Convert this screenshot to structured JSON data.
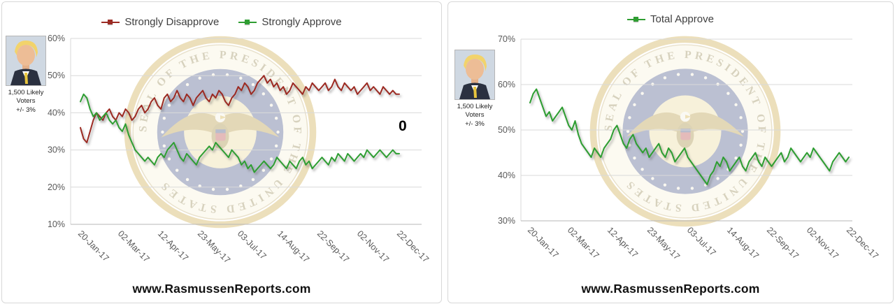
{
  "branding": {
    "website": "www.RasmussenReports.com"
  },
  "photo_note": {
    "line1": "1,500 Likely",
    "line2": "Voters",
    "line3": "+/- 3%"
  },
  "watermark": {
    "ring_text": "SEAL OF THE PRESIDENT OF THE UNITED STATES"
  },
  "chart_data": [
    {
      "type": "line",
      "title": "",
      "legend_position": "top",
      "grid": "horizontal",
      "x_tick_labels": [
        "20-Jan-17",
        "02-Mar-17",
        "12-Apr-17",
        "23-May-17",
        "03-Jul-17",
        "14-Aug-17",
        "22-Sep-17",
        "02-Nov-17",
        "22-Dec-17"
      ],
      "ylim": [
        10,
        60
      ],
      "y_ticks": [
        60,
        50,
        40,
        30,
        20,
        10
      ],
      "y_tick_format": "percent",
      "annotation": "0",
      "series": [
        {
          "name": "Strongly Disapprove",
          "color": "#9C2B24",
          "values": [
            36,
            33,
            32,
            35,
            38,
            40,
            39,
            38,
            40,
            41,
            39,
            38,
            40,
            39,
            41,
            40,
            38,
            39,
            41,
            42,
            40,
            41,
            43,
            44,
            42,
            41,
            44,
            45,
            43,
            44,
            46,
            44,
            43,
            45,
            44,
            42,
            44,
            45,
            46,
            44,
            43,
            45,
            44,
            46,
            45,
            43,
            42,
            44,
            45,
            47,
            46,
            48,
            47,
            45,
            46,
            48,
            49,
            50,
            48,
            49,
            47,
            48,
            46,
            47,
            45,
            46,
            48,
            47,
            46,
            45,
            47,
            46,
            48,
            47,
            46,
            47,
            48,
            46,
            47,
            49,
            47,
            46,
            48,
            47,
            46,
            47,
            45,
            46,
            47,
            48,
            46,
            47,
            46,
            45,
            47,
            46,
            45,
            46,
            45,
            45
          ]
        },
        {
          "name": "Strongly Approve",
          "color": "#2F9E32",
          "values": [
            43,
            45,
            44,
            41,
            39,
            40,
            38,
            39,
            40,
            38,
            37,
            38,
            36,
            35,
            37,
            34,
            32,
            30,
            29,
            28,
            27,
            28,
            27,
            26,
            28,
            29,
            28,
            30,
            31,
            32,
            30,
            28,
            27,
            29,
            28,
            27,
            26,
            28,
            29,
            30,
            31,
            30,
            32,
            31,
            30,
            29,
            28,
            30,
            29,
            28,
            26,
            27,
            25,
            26,
            24,
            25,
            26,
            27,
            26,
            25,
            26,
            28,
            27,
            26,
            25,
            27,
            26,
            25,
            27,
            28,
            26,
            27,
            25,
            26,
            27,
            28,
            27,
            26,
            28,
            27,
            29,
            28,
            27,
            29,
            28,
            27,
            28,
            29,
            28,
            30,
            29,
            28,
            29,
            30,
            29,
            28,
            29,
            30,
            29,
            29
          ]
        }
      ]
    },
    {
      "type": "line",
      "title": "",
      "legend_position": "top",
      "grid": "horizontal",
      "x_tick_labels": [
        "20-Jan-17",
        "02-Mar-17",
        "12-Apr-17",
        "23-May-17",
        "03-Jul-17",
        "14-Aug-17",
        "22-Sep-17",
        "02-Nov-17",
        "22-Dec-17"
      ],
      "ylim": [
        30,
        70
      ],
      "y_ticks": [
        70,
        60,
        50,
        40,
        30
      ],
      "y_tick_format": "percent",
      "series": [
        {
          "name": "Total Approve",
          "color": "#2F9E32",
          "values": [
            56,
            58,
            59,
            57,
            55,
            53,
            54,
            52,
            53,
            54,
            55,
            53,
            51,
            50,
            52,
            49,
            47,
            46,
            45,
            44,
            46,
            45,
            44,
            46,
            47,
            48,
            50,
            51,
            49,
            47,
            46,
            48,
            49,
            47,
            46,
            45,
            46,
            44,
            45,
            46,
            47,
            45,
            44,
            46,
            45,
            43,
            44,
            45,
            46,
            44,
            43,
            42,
            41,
            40,
            39,
            38,
            40,
            41,
            43,
            42,
            44,
            43,
            41,
            42,
            43,
            44,
            42,
            41,
            43,
            44,
            45,
            43,
            42,
            44,
            43,
            42,
            43,
            44,
            45,
            43,
            44,
            46,
            45,
            44,
            43,
            44,
            45,
            44,
            46,
            45,
            44,
            43,
            42,
            41,
            43,
            44,
            45,
            44,
            43,
            44
          ]
        }
      ]
    }
  ]
}
